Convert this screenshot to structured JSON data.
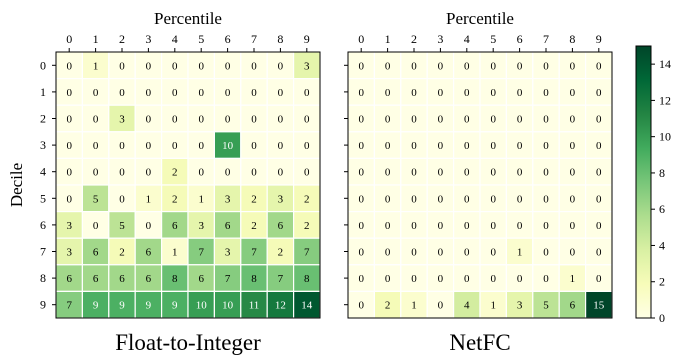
{
  "chart_data": {
    "type": "heatmap",
    "panels": [
      {
        "title": "Float-to-Integer",
        "xlabel": "Percentile",
        "ylabel": "Decile",
        "x_categories": [
          "0",
          "1",
          "2",
          "3",
          "4",
          "5",
          "6",
          "7",
          "8",
          "9"
        ],
        "y_categories": [
          "0",
          "1",
          "2",
          "3",
          "4",
          "5",
          "6",
          "7",
          "8",
          "9"
        ],
        "values": [
          [
            0,
            1,
            0,
            0,
            0,
            0,
            0,
            0,
            0,
            3
          ],
          [
            0,
            0,
            0,
            0,
            0,
            0,
            0,
            0,
            0,
            0
          ],
          [
            0,
            0,
            3,
            0,
            0,
            0,
            0,
            0,
            0,
            0
          ],
          [
            0,
            0,
            0,
            0,
            0,
            0,
            10,
            0,
            0,
            0
          ],
          [
            0,
            0,
            0,
            0,
            2,
            0,
            0,
            0,
            0,
            0
          ],
          [
            0,
            5,
            0,
            1,
            2,
            1,
            3,
            2,
            3,
            2
          ],
          [
            3,
            0,
            5,
            0,
            6,
            3,
            6,
            2,
            6,
            2
          ],
          [
            3,
            6,
            2,
            6,
            1,
            7,
            3,
            7,
            2,
            7
          ],
          [
            6,
            6,
            6,
            6,
            8,
            6,
            7,
            8,
            7,
            8
          ],
          [
            7,
            9,
            9,
            9,
            9,
            10,
            10,
            11,
            12,
            14
          ]
        ]
      },
      {
        "title": "NetFC",
        "xlabel": "Percentile",
        "ylabel": "",
        "x_categories": [
          "0",
          "1",
          "2",
          "3",
          "4",
          "5",
          "6",
          "7",
          "8",
          "9"
        ],
        "y_categories": [
          "0",
          "1",
          "2",
          "3",
          "4",
          "5",
          "6",
          "7",
          "8",
          "9"
        ],
        "values": [
          [
            0,
            0,
            0,
            0,
            0,
            0,
            0,
            0,
            0,
            0
          ],
          [
            0,
            0,
            0,
            0,
            0,
            0,
            0,
            0,
            0,
            0
          ],
          [
            0,
            0,
            0,
            0,
            0,
            0,
            0,
            0,
            0,
            0
          ],
          [
            0,
            0,
            0,
            0,
            0,
            0,
            0,
            0,
            0,
            0
          ],
          [
            0,
            0,
            0,
            0,
            0,
            0,
            0,
            0,
            0,
            0
          ],
          [
            0,
            0,
            0,
            0,
            0,
            0,
            0,
            0,
            0,
            0
          ],
          [
            0,
            0,
            0,
            0,
            0,
            0,
            0,
            0,
            0,
            0
          ],
          [
            0,
            0,
            0,
            0,
            0,
            0,
            1,
            0,
            0,
            0
          ],
          [
            0,
            0,
            0,
            0,
            0,
            0,
            0,
            0,
            1,
            0
          ],
          [
            0,
            2,
            1,
            0,
            4,
            1,
            3,
            5,
            6,
            15
          ]
        ]
      }
    ],
    "colorbar": {
      "range": [
        0,
        15
      ],
      "ticks": [
        "0",
        "2",
        "4",
        "6",
        "8",
        "10",
        "12",
        "14"
      ],
      "colormap": "YlGn",
      "colors": [
        "#ffffe5",
        "#f7fcb9",
        "#d9f0a3",
        "#addd8e",
        "#78c679",
        "#41ab5d",
        "#238443",
        "#006837",
        "#004529"
      ]
    }
  }
}
